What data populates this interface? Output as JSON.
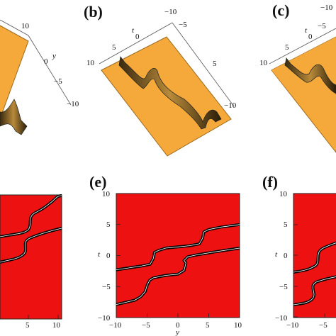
{
  "panels": {
    "top": [
      {
        "label": "",
        "axis_var_t": "",
        "axis_var_y": "y",
        "ticks_left_axis": [
          "10"
        ],
        "ticks_right_axis": [
          "0",
          "−5",
          "−10"
        ]
      },
      {
        "label": "(b)",
        "axis_var_t": "t",
        "axis_var_t_sub": "0",
        "axis_var_y": "",
        "ticks_left_axis": [
          "10",
          "5"
        ],
        "ticks_right_axis": [
          "−10",
          "−5",
          "5",
          "−10"
        ]
      },
      {
        "label": "(c)",
        "axis_var_t": "t",
        "axis_var_t_sub": "0",
        "axis_var_y": "",
        "ticks_left_axis": [
          "10",
          "5"
        ],
        "ticks_right_axis": [
          "−10",
          "−5"
        ]
      }
    ],
    "bottom": [
      {
        "label": "",
        "xlabel": "",
        "ylabel": "",
        "x_ticks": [
          "5",
          "10"
        ]
      },
      {
        "label": "(e)",
        "xlabel": "y",
        "ylabel": "t",
        "x_ticks": [
          "−10",
          "−5",
          "0",
          "5",
          "10"
        ],
        "y_ticks": [
          "10",
          "5",
          "0",
          "−5",
          "−10"
        ]
      },
      {
        "label": "(f)",
        "xlabel": "",
        "ylabel": "t",
        "x_ticks": [
          "−10",
          "−5"
        ],
        "y_ticks": [
          "10",
          "5",
          "0",
          "−5",
          "−10"
        ]
      }
    ]
  },
  "colors": {
    "surface": "#f4a93a",
    "surface_edge": "#9c6a1f",
    "density_bg": "#ee1111",
    "curve": "#000000",
    "curve_highlight": "#ffffff"
  },
  "chart_data": [
    {
      "type": "heatmap",
      "xlabel": "y",
      "ylabel": "t",
      "xlim": [
        -10,
        10
      ],
      "ylim": [
        -10,
        10
      ],
      "series": [
        {
          "values": [
            [
              -10,
              -2.3
            ],
            [
              -6,
              -1.7
            ],
            [
              -4.5,
              -1.4
            ],
            [
              -4,
              -0.5
            ],
            [
              -3.8,
              0.5
            ],
            [
              -3.2,
              0.8
            ],
            [
              -2,
              1.2
            ],
            [
              0,
              1.4
            ],
            [
              2,
              1.6
            ],
            [
              3.5,
              1.9
            ],
            [
              4.0,
              2.8
            ],
            [
              4.2,
              3.8
            ],
            [
              5,
              4.2
            ],
            [
              7,
              4.6
            ],
            [
              10,
              5.0
            ]
          ]
        },
        {
          "values": [
            [
              -10,
              -7.9
            ],
            [
              -7,
              -7.2
            ],
            [
              -6,
              -6.6
            ],
            [
              -5.3,
              -5.8
            ],
            [
              -5,
              -4.8
            ],
            [
              -4.6,
              -4.0
            ],
            [
              -4,
              -3.6
            ],
            [
              -2,
              -3.2
            ],
            [
              0,
              -3.0
            ],
            [
              1,
              -2.4
            ],
            [
              1.3,
              -1.2
            ],
            [
              1.0,
              -0.8
            ],
            [
              1.6,
              -0.2
            ],
            [
              3,
              0.1
            ],
            [
              6,
              0.6
            ],
            [
              10,
              1.2
            ]
          ]
        }
      ]
    }
  ]
}
